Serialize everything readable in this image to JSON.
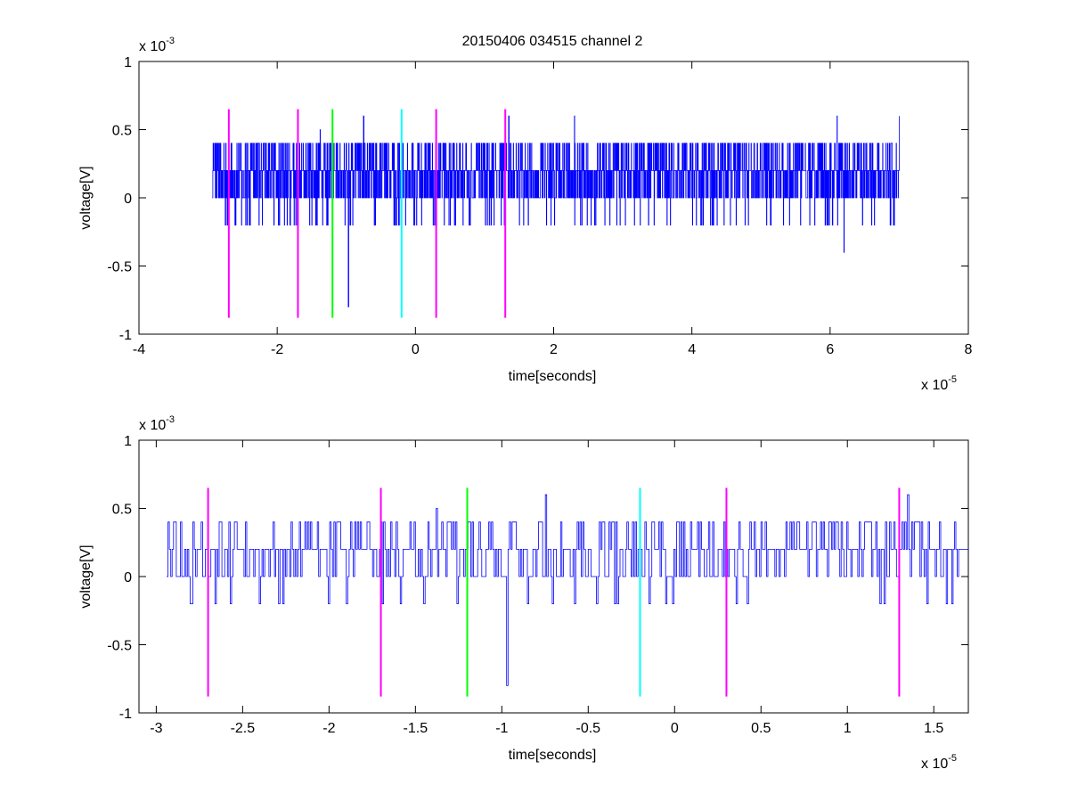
{
  "title": "20150406 034515 channel 2",
  "colors": {
    "signal": "#0000ff",
    "marker_magenta": "#ff00ff",
    "marker_green": "#00ff00",
    "marker_cyan": "#00ffff",
    "axes": "#000000"
  },
  "chart_data": [
    {
      "type": "line",
      "title": "20150406 034515 channel 2",
      "xlabel": "time[seconds]",
      "ylabel": "voltage[V]",
      "x_exponent_label": "x 10",
      "x_exponent": "-5",
      "y_exponent_label": "x 10",
      "y_exponent": "-3",
      "xlim": [
        -4e-05,
        8e-05
      ],
      "ylim": [
        -0.001,
        0.001
      ],
      "xticks": [
        -4e-05,
        -2e-05,
        0,
        2e-05,
        4e-05,
        6e-05,
        8e-05
      ],
      "xtick_labels": [
        "-4",
        "-2",
        "0",
        "2",
        "4",
        "6",
        "8"
      ],
      "yticks": [
        -0.001,
        -0.0005,
        0,
        0.0005,
        0.001
      ],
      "ytick_labels": [
        "-1",
        "-0.5",
        "0",
        "0.5",
        "1"
      ],
      "grid": false,
      "signal": {
        "x_start": -2.94e-05,
        "x_end": 7e-05,
        "sample_step": 4e-08,
        "quantization_step": 0.0002,
        "baseline": 0.0002,
        "spikes": [
          {
            "x": -2.9e-05,
            "y": 0.0004
          },
          {
            "x": -1.38e-05,
            "y": 0.0005
          },
          {
            "x": -9.7e-06,
            "y": -0.0008
          },
          {
            "x": -7.5e-06,
            "y": 0.0006
          },
          {
            "x": 1.35e-05,
            "y": 0.0006
          },
          {
            "x": 2.3e-05,
            "y": 0.0006
          },
          {
            "x": 6.1e-05,
            "y": 0.0006
          },
          {
            "x": 6.2e-05,
            "y": -0.0004
          },
          {
            "x": 7e-05,
            "y": 0.0006
          }
        ]
      },
      "markers": [
        {
          "x": -2.7e-05,
          "color": "#ff00ff",
          "y_top": 0.00065,
          "y_bottom": -0.00088
        },
        {
          "x": -1.7e-05,
          "color": "#ff00ff",
          "y_top": 0.00065,
          "y_bottom": -0.00088
        },
        {
          "x": -1.2e-05,
          "color": "#00ff00",
          "y_top": 0.00065,
          "y_bottom": -0.00088
        },
        {
          "x": -2e-06,
          "color": "#00ffff",
          "y_top": 0.00065,
          "y_bottom": -0.00088
        },
        {
          "x": 3e-06,
          "color": "#ff00ff",
          "y_top": 0.00065,
          "y_bottom": -0.00088
        },
        {
          "x": 1.3e-05,
          "color": "#ff00ff",
          "y_top": 0.00065,
          "y_bottom": -0.00088
        }
      ]
    },
    {
      "type": "line",
      "title": "",
      "xlabel": "time[seconds]",
      "ylabel": "voltage[V]",
      "x_exponent_label": "x 10",
      "x_exponent": "-5",
      "y_exponent_label": "x 10",
      "y_exponent": "-3",
      "xlim": [
        -3.1e-05,
        1.7e-05
      ],
      "ylim": [
        -0.001,
        0.001
      ],
      "xticks": [
        -3e-05,
        -2.5e-05,
        -2e-05,
        -1.5e-05,
        -1e-05,
        -5e-06,
        0,
        5e-06,
        1e-05,
        1.5e-05
      ],
      "xtick_labels": [
        "-3",
        "-2.5",
        "-2",
        "-1.5",
        "-1",
        "-0.5",
        "0",
        "0.5",
        "1",
        "1.5"
      ],
      "yticks": [
        -0.001,
        -0.0005,
        0,
        0.0005,
        0.001
      ],
      "ytick_labels": [
        "-1",
        "-0.5",
        "0",
        "0.5",
        "1"
      ],
      "grid": false,
      "signal": {
        "x_start": -2.94e-05,
        "x_end": 1.7e-05,
        "sample_step": 8e-08,
        "quantization_step": 0.0002,
        "baseline": 0.0002,
        "spikes": [
          {
            "x": -2.9e-05,
            "y": 0.0004
          },
          {
            "x": -2.8e-05,
            "y": -0.0002
          },
          {
            "x": -1.38e-05,
            "y": 0.0005
          },
          {
            "x": -1.45e-05,
            "y": -0.0002
          },
          {
            "x": -9.7e-06,
            "y": -0.0008
          },
          {
            "x": -7.5e-06,
            "y": 0.0006
          },
          {
            "x": -4.5e-06,
            "y": -0.0002
          },
          {
            "x": 1.35e-05,
            "y": 0.0006
          }
        ]
      },
      "markers": [
        {
          "x": -2.7e-05,
          "color": "#ff00ff",
          "y_top": 0.00065,
          "y_bottom": -0.00088
        },
        {
          "x": -1.7e-05,
          "color": "#ff00ff",
          "y_top": 0.00065,
          "y_bottom": -0.00088
        },
        {
          "x": -1.2e-05,
          "color": "#00ff00",
          "y_top": 0.00065,
          "y_bottom": -0.00088
        },
        {
          "x": -2e-06,
          "color": "#00ffff",
          "y_top": 0.00065,
          "y_bottom": -0.00088
        },
        {
          "x": 3e-06,
          "color": "#ff00ff",
          "y_top": 0.00065,
          "y_bottom": -0.00088
        },
        {
          "x": 1.3e-05,
          "color": "#ff00ff",
          "y_top": 0.00065,
          "y_bottom": -0.00088
        }
      ]
    }
  ]
}
